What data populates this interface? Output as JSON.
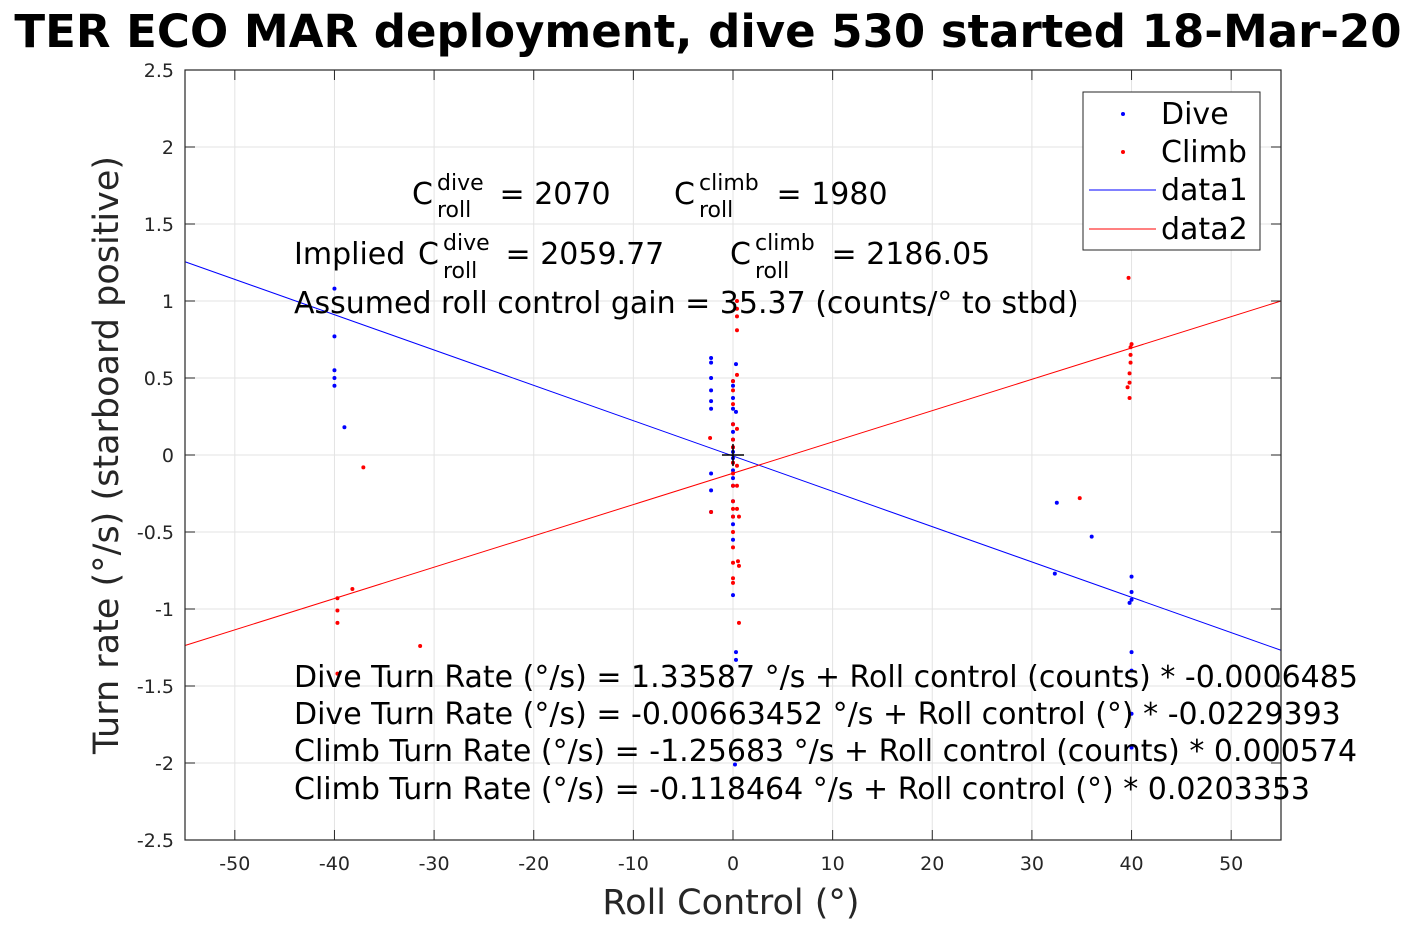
{
  "chart_data": {
    "type": "scatter",
    "title": "TER ECO MAR deployment, dive 530 started 18-Mar-20",
    "xlabel": "Roll Control (°)",
    "ylabel": "Turn rate (°/s) (starboard positive)",
    "xlim": [
      -55,
      55
    ],
    "ylim": [
      -2.5,
      2.5
    ],
    "grid": true,
    "legend_position": "top-right",
    "xticks": [
      -50,
      -40,
      -30,
      -20,
      -10,
      0,
      10,
      20,
      30,
      40,
      50
    ],
    "yticks": [
      -2.5,
      -2,
      -1.5,
      -1,
      -0.5,
      0,
      0.5,
      1,
      1.5,
      2,
      2.5
    ],
    "xtick_labels": [
      "-50",
      "-40",
      "-30",
      "-20",
      "-10",
      "0",
      "10",
      "20",
      "30",
      "40",
      "50"
    ],
    "ytick_labels": [
      "-2.5",
      "-2",
      "-1.5",
      "-1",
      "-0.5",
      "0",
      "0.5",
      "1",
      "1.5",
      "2",
      "2.5"
    ],
    "colors": {
      "dive": "#0000ff",
      "climb": "#ff0000",
      "marker": "#000000"
    },
    "series": [
      {
        "name": "Dive",
        "kind": "points",
        "color": "#0000ff",
        "points": [
          [
            -40,
            1.08
          ],
          [
            -40,
            0.77
          ],
          [
            -40,
            0.55
          ],
          [
            -40,
            0.5
          ],
          [
            -40,
            0.45
          ],
          [
            -39,
            0.18
          ],
          [
            -2.2,
            0.63
          ],
          [
            -2.2,
            0.6
          ],
          [
            -2.2,
            0.5
          ],
          [
            -2.2,
            0.42
          ],
          [
            -2.2,
            0.35
          ],
          [
            -2.2,
            0.3
          ],
          [
            -2.2,
            -0.12
          ],
          [
            -2.2,
            -0.23
          ],
          [
            -2.2,
            -0.37
          ],
          [
            0,
            0.48
          ],
          [
            0,
            0.45
          ],
          [
            0,
            0.37
          ],
          [
            0,
            0.3
          ],
          [
            0,
            0.2
          ],
          [
            0,
            0.15
          ],
          [
            0,
            0.1
          ],
          [
            0,
            0.05
          ],
          [
            0,
            0.02
          ],
          [
            0,
            -0.02
          ],
          [
            0,
            -0.05
          ],
          [
            0,
            -0.1
          ],
          [
            0,
            -0.15
          ],
          [
            0,
            -0.2
          ],
          [
            0,
            -0.3
          ],
          [
            0,
            -0.4
          ],
          [
            0,
            -0.45
          ],
          [
            0,
            -0.55
          ],
          [
            0,
            -0.91
          ],
          [
            0.3,
            0.59
          ],
          [
            0.3,
            0.28
          ],
          [
            0.3,
            -1.28
          ],
          [
            0.3,
            -1.33
          ],
          [
            0.2,
            -2.01
          ],
          [
            32.5,
            -0.31
          ],
          [
            32.3,
            -0.77
          ],
          [
            36,
            -0.53
          ],
          [
            40,
            -0.79
          ],
          [
            40,
            -0.89
          ],
          [
            40,
            -0.94
          ],
          [
            39.8,
            -0.96
          ],
          [
            40,
            -1.28
          ],
          [
            40,
            -1.4
          ],
          [
            40,
            -1.68
          ],
          [
            40,
            -1.9
          ]
        ]
      },
      {
        "name": "Climb",
        "kind": "points",
        "color": "#ff0000",
        "points": [
          [
            -39.7,
            -0.93
          ],
          [
            -39.7,
            -1.01
          ],
          [
            -39.7,
            -1.09
          ],
          [
            -38.2,
            -0.87
          ],
          [
            -37.1,
            -0.08
          ],
          [
            -31.4,
            -1.24
          ],
          [
            -39.7,
            -1.42
          ],
          [
            -2.3,
            0.11
          ],
          [
            -2.2,
            -0.37
          ],
          [
            0,
            0.48
          ],
          [
            0,
            0.42
          ],
          [
            0,
            0.33
          ],
          [
            0,
            0.2
          ],
          [
            0,
            0.1
          ],
          [
            0,
            0.05
          ],
          [
            0,
            -0.05
          ],
          [
            0,
            -0.12
          ],
          [
            0,
            -0.2
          ],
          [
            0,
            -0.3
          ],
          [
            0,
            -0.4
          ],
          [
            0,
            -0.5
          ],
          [
            0,
            -0.6
          ],
          [
            0,
            -0.7
          ],
          [
            0,
            -0.8
          ],
          [
            0,
            -0.83
          ],
          [
            0,
            -0.35
          ],
          [
            0.4,
            1.0
          ],
          [
            0.4,
            0.95
          ],
          [
            0.4,
            0.9
          ],
          [
            0.4,
            0.81
          ],
          [
            0.4,
            0.52
          ],
          [
            0.4,
            0.17
          ],
          [
            0.4,
            -0.07
          ],
          [
            0.4,
            -0.2
          ],
          [
            0.4,
            -0.35
          ],
          [
            0.5,
            -0.69
          ],
          [
            0.6,
            -0.4
          ],
          [
            0.6,
            -0.72
          ],
          [
            0.6,
            -1.09
          ],
          [
            34.8,
            -0.28
          ],
          [
            39.6,
            0.44
          ],
          [
            39.8,
            0.37
          ],
          [
            39.8,
            0.53
          ],
          [
            39.9,
            0.6
          ],
          [
            39.9,
            0.65
          ],
          [
            39.9,
            0.7
          ],
          [
            40,
            0.72
          ],
          [
            39.8,
            0.47
          ],
          [
            39.7,
            1.15
          ]
        ]
      },
      {
        "name": "data1",
        "kind": "line",
        "color": "#0000ff",
        "x": [
          -55,
          55
        ],
        "y": [
          1.255,
          -1.268
        ]
      },
      {
        "name": "data2",
        "kind": "line",
        "color": "#ff0000",
        "x": [
          -55,
          55
        ],
        "y": [
          -1.237,
          1.0
        ]
      }
    ],
    "origin_marker": [
      0,
      0
    ],
    "annotations": {
      "c_dive": {
        "base": "C",
        "sub": "roll",
        "sup": "dive",
        "value": " = 2070"
      },
      "c_climb": {
        "base": "C",
        "sub": "roll",
        "sup": "climb",
        "value": " = 1980"
      },
      "implied_prefix": "Implied ",
      "implied_dive": {
        "base": "C",
        "sub": "roll",
        "sup": "dive",
        "value": " = 2059.77"
      },
      "implied_climb": {
        "base": "C",
        "sub": "roll",
        "sup": "climb",
        "value": " = 2186.05"
      },
      "gain": "Assumed roll control gain = 35.37 (counts/° to stbd)",
      "eq1": "Dive Turn Rate (°/s) = 1.33587 °/s + Roll control (counts) * -0.0006485",
      "eq2": "Dive Turn Rate (°/s) = -0.00663452 °/s + Roll control (°) * -0.0229393",
      "eq3": "Climb Turn Rate (°/s) = -1.25683 °/s + Roll control (counts) * 0.000574",
      "eq4": "Climb Turn Rate (°/s) = -0.118464 °/s + Roll control (°) * 0.0203353"
    }
  }
}
